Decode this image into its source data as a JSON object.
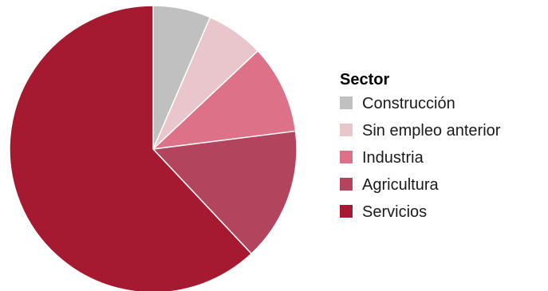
{
  "chart_data": {
    "type": "pie",
    "title": "",
    "legend": {
      "title": "Sector",
      "position": "right"
    },
    "start_angle_deg": 0,
    "direction": "clockwise",
    "slices": [
      {
        "label": "Construcción",
        "value": 6.5,
        "color": "#c0c0c0"
      },
      {
        "label": "Sin empleo anterior",
        "value": 6.5,
        "color": "#e8c6cc"
      },
      {
        "label": "Industria",
        "value": 10.0,
        "color": "#dc7187"
      },
      {
        "label": "Agricultura",
        "value": 15.0,
        "color": "#b3445d"
      },
      {
        "label": "Servicios",
        "value": 62.0,
        "color": "#a51931"
      }
    ]
  }
}
